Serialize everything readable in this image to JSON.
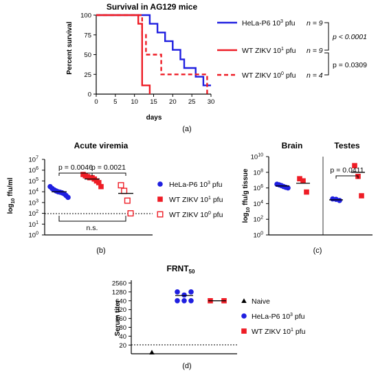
{
  "chart_data": [
    {
      "id": "a",
      "type": "line",
      "title": "Survival in AG129 mice",
      "xlabel": "days",
      "ylabel": "Percent survival",
      "xlim": [
        0,
        30
      ],
      "ylim": [
        0,
        100
      ],
      "xticks": [
        "0",
        "5",
        "10",
        "15",
        "20",
        "25",
        "30"
      ],
      "yticks": [
        "0",
        "25",
        "50",
        "75",
        "100"
      ],
      "series": [
        {
          "name": "HeLa-P6 10",
          "sup": "3",
          "unit": " pfu",
          "n": "n = 9",
          "color": "#1f1fe0",
          "dash": false,
          "points": [
            [
              0,
              100
            ],
            [
              14,
              100
            ],
            [
              14,
              89
            ],
            [
              16,
              89
            ],
            [
              16,
              78
            ],
            [
              18,
              78
            ],
            [
              18,
              67
            ],
            [
              20,
              67
            ],
            [
              20,
              56
            ],
            [
              22,
              56
            ],
            [
              22,
              44
            ],
            [
              23,
              44
            ],
            [
              23,
              33
            ],
            [
              26,
              33
            ],
            [
              26,
              22
            ],
            [
              28,
              22
            ],
            [
              28,
              11
            ],
            [
              30,
              11
            ]
          ]
        },
        {
          "name": "WT ZIKV 10",
          "sup": "1",
          "unit": " pfu",
          "n": "n = 9",
          "color": "#ee1c25",
          "dash": false,
          "points": [
            [
              0,
              100
            ],
            [
              11,
              100
            ],
            [
              11,
              89
            ],
            [
              12,
              89
            ],
            [
              12,
              11
            ],
            [
              14,
              11
            ],
            [
              14,
              0
            ]
          ]
        },
        {
          "name": "WT ZIKV 10",
          "sup": "0",
          "unit": " pfu",
          "n": "n = 4",
          "color": "#ee1c25",
          "dash": true,
          "points": [
            [
              0,
              100
            ],
            [
              12,
              100
            ],
            [
              12,
              75
            ],
            [
              13,
              75
            ],
            [
              13,
              50
            ],
            [
              17,
              50
            ],
            [
              17,
              25
            ],
            [
              29,
              25
            ],
            [
              29,
              0
            ]
          ]
        }
      ],
      "annotations": [
        "p < 0.0001",
        "p = 0.0309"
      ],
      "caption": "(a)"
    },
    {
      "id": "b",
      "type": "scatter",
      "title": "Acute viremia",
      "ylabel_main": "log",
      "ylabel_sub": "10",
      "ylabel_rest": " ffu/ml",
      "log_base": 10,
      "ylim_exp": [
        0,
        7
      ],
      "ytick_base": "10",
      "ytick_exps": [
        "0",
        "1",
        "2",
        "3",
        "4",
        "5",
        "6",
        "7"
      ],
      "limit_of_detection": 100,
      "groups": [
        {
          "name": "HeLa-P6 10",
          "sup": "3",
          "unit": " pfu",
          "marker": "circle",
          "filled": true,
          "color": "#1f1fe0",
          "values": [
            30000,
            20000,
            15000,
            12000,
            10000,
            9000,
            8000,
            6500,
            4500,
            3000
          ],
          "mean": 10000
        },
        {
          "name": "WT ZIKV 10",
          "sup": "1",
          "unit": " pfu",
          "marker": "square",
          "filled": true,
          "color": "#ee1c25",
          "values": [
            400000,
            300000,
            250000,
            200000,
            200000,
            150000,
            100000,
            70000,
            30000
          ],
          "mean": 150000
        },
        {
          "name": "WT ZIKV 10",
          "sup": "0",
          "unit": " pfu",
          "marker": "square",
          "filled": false,
          "color": "#ee1c25",
          "values": [
            40000,
            12000,
            1500,
            100
          ],
          "mean": 7000
        }
      ],
      "annotations": [
        "p = 0.0046",
        "p = 0.0021",
        "n.s."
      ],
      "caption": "(b)"
    },
    {
      "id": "c",
      "type": "scatter",
      "ylabel_main": "log",
      "ylabel_sub": "10",
      "ylabel_rest": " ffu/g tissue",
      "log_base": 10,
      "ylim_exp": [
        0,
        10
      ],
      "ytick_base": "10",
      "ytick_exps": [
        "0",
        "2",
        "4",
        "6",
        "8",
        "10"
      ],
      "panels": [
        {
          "title": "Brain",
          "groups": [
            {
              "color": "#1f1fe0",
              "marker": "circle",
              "filled": true,
              "values": [
                3000000,
                2500000,
                2000000,
                1500000,
                1200000,
                1000000
              ],
              "mean": 1800000
            },
            {
              "color": "#ee1c25",
              "marker": "square",
              "filled": true,
              "values": [
                15000000,
                8000000,
                300000
              ],
              "mean": 4000000
            }
          ]
        },
        {
          "title": "Testes",
          "groups": [
            {
              "color": "#1f1fe0",
              "marker": "circle",
              "filled": true,
              "values": [
                40000,
                35000,
                25000
              ],
              "mean": 30000
            },
            {
              "color": "#ee1c25",
              "marker": "square",
              "filled": true,
              "values": [
                700000000,
                30000000,
                100000
              ],
              "mean": 100000000
            }
          ]
        }
      ],
      "annotations": [
        "p = 0.0411"
      ],
      "caption": "(c)"
    },
    {
      "id": "d",
      "type": "scatter",
      "title": "FRNT",
      "title_sub": "50",
      "ylabel": "Serum titer",
      "yticks": [
        "20",
        "40",
        "80",
        "160",
        "320",
        "640",
        "1280",
        "2560"
      ],
      "limit_of_detection": 20,
      "groups": [
        {
          "name": "Naive",
          "marker": "triangle",
          "color": "#000000",
          "values": [
            10
          ],
          "mean": null
        },
        {
          "name": "HeLa-P6 10",
          "sup": "3",
          "unit": " pfu",
          "marker": "circle",
          "color": "#1f1fe0",
          "values": [
            1280,
            1280,
            1000,
            640,
            640,
            640
          ],
          "mean": 960
        },
        {
          "name": "WT ZIKV 10",
          "sup": "1",
          "unit": " pfu",
          "marker": "square",
          "color": "#ee1c25",
          "values": [
            640,
            640
          ],
          "mean": 640
        }
      ],
      "caption": "(d)"
    }
  ]
}
